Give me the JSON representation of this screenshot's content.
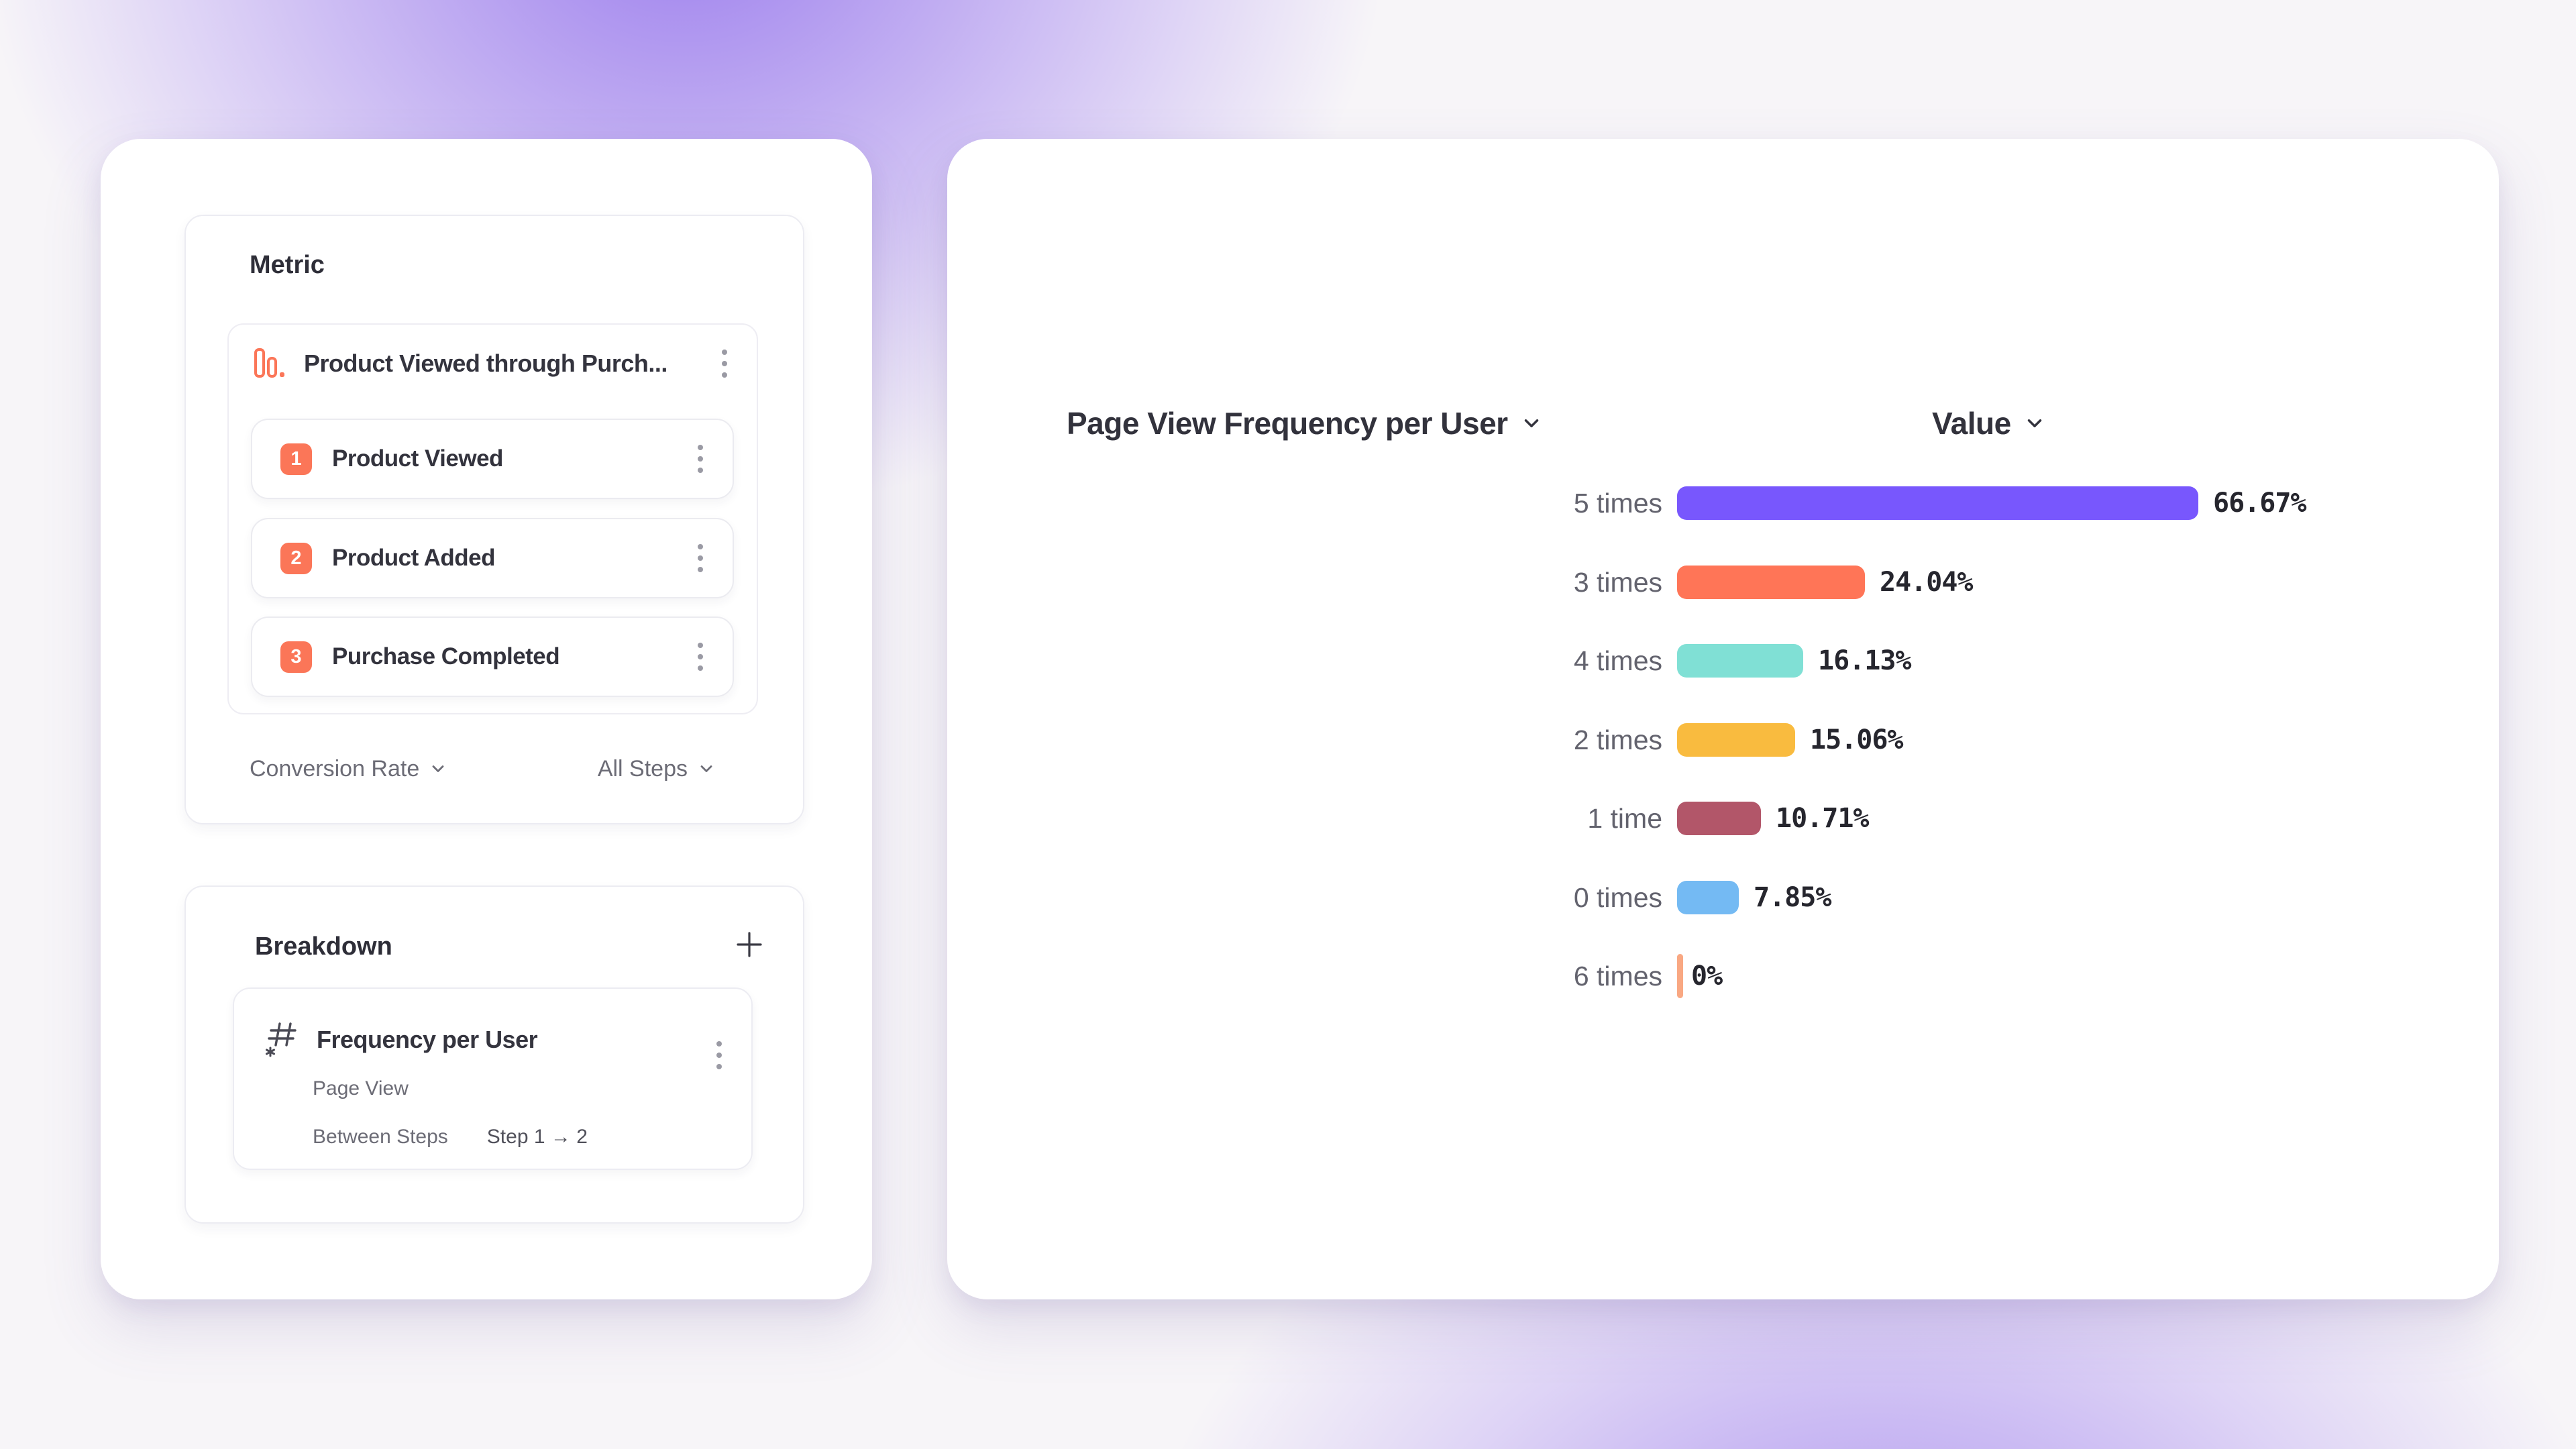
{
  "colors": {
    "background_base": "#f7f5f8",
    "background_glow": "#8c69eb",
    "accent_orange": "#fb7658",
    "bar_purple": "#7857fd",
    "bar_coral": "#ff7557",
    "bar_teal": "#80e0d5",
    "bar_amber": "#f9bb3f",
    "bar_maroon": "#b25669",
    "bar_blue": "#74baf3",
    "bar_salmon_tick": "#f9a883"
  },
  "icons": {
    "metric": "funnel-bars-icon",
    "breakdown": "numeric-hash-icon",
    "menu": "kebab-menu-icon",
    "add": "plus-icon",
    "dropdown": "chevron-down-icon"
  },
  "metric_panel": {
    "title": "Metric",
    "funnel": {
      "name": "Product Viewed through Purch...",
      "steps": [
        {
          "number": "1",
          "label": "Product Viewed"
        },
        {
          "number": "2",
          "label": "Product Added"
        },
        {
          "number": "3",
          "label": "Purchase Completed"
        }
      ]
    },
    "footer": {
      "left": "Conversion Rate",
      "right": "All Steps"
    }
  },
  "breakdown_panel": {
    "title": "Breakdown",
    "item": {
      "name": "Frequency per User",
      "event": "Page View",
      "between_label": "Between Steps",
      "between_value": "Step 1 → 2"
    }
  },
  "chart": {
    "left_header": "Page View Frequency per User",
    "right_header": "Value",
    "rows": [
      {
        "label": "5 times",
        "value": "66.67%",
        "pct": 66.67,
        "color": "#7857fd"
      },
      {
        "label": "3 times",
        "value": "24.04%",
        "pct": 24.04,
        "color": "#ff7557"
      },
      {
        "label": "4 times",
        "value": "16.13%",
        "pct": 16.13,
        "color": "#80e0d5"
      },
      {
        "label": "2 times",
        "value": "15.06%",
        "pct": 15.06,
        "color": "#f9bb3f"
      },
      {
        "label": "1 time",
        "value": "10.71%",
        "pct": 10.71,
        "color": "#b25669"
      },
      {
        "label": "0 times",
        "value": "7.85%",
        "pct": 7.85,
        "color": "#74baf3"
      },
      {
        "label": "6 times",
        "value": "0%",
        "pct": 0,
        "color": "#f9a883"
      }
    ]
  },
  "chart_data": {
    "type": "bar",
    "orientation": "horizontal",
    "title": "Page View Frequency per User",
    "value_header": "Value",
    "categories": [
      "5 times",
      "3 times",
      "4 times",
      "2 times",
      "1 time",
      "0 times",
      "6 times"
    ],
    "values": [
      66.67,
      24.04,
      16.13,
      15.06,
      10.71,
      7.85,
      0
    ],
    "unit": "%",
    "xlim": [
      0,
      100
    ],
    "grid": false,
    "legend": false
  }
}
